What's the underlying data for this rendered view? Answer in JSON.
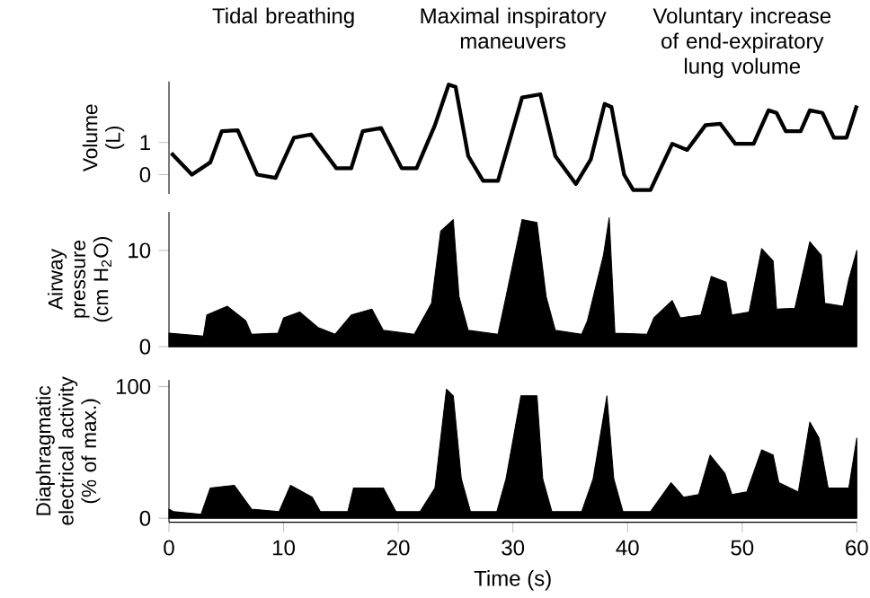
{
  "chart_data": [
    {
      "type": "line",
      "ylabel": "Volume (L)",
      "color": "#000000",
      "xlim": [
        0,
        60
      ],
      "ylim": [
        -0.6,
        2.9
      ],
      "yticks": [
        0,
        1
      ],
      "tick_labels": "y",
      "annotations": [
        "Tidal breathing",
        "Maximal inspiratory maneuvers",
        "Voluntary increase of end-expiratory lung volume"
      ],
      "x": [
        0.2,
        2.0,
        3.6,
        4.6,
        6.0,
        7.7,
        9.3,
        10.9,
        12.4,
        14.6,
        15.9,
        16.9,
        18.5,
        20.3,
        21.6,
        23.2,
        24.4,
        25.0,
        26.1,
        27.4,
        28.7,
        30.8,
        32.4,
        33.7,
        35.5,
        36.8,
        38.0,
        38.6,
        39.7,
        40.5,
        42.0,
        43.9,
        45.2,
        46.8,
        48.1,
        49.4,
        51.0,
        52.3,
        53.0,
        53.8,
        55.1,
        55.9,
        57.0,
        58.0,
        59.1,
        60
      ],
      "values": [
        0.67,
        0,
        0.38,
        1.35,
        1.38,
        0,
        -0.1,
        1.15,
        1.25,
        0.2,
        0.2,
        1.35,
        1.45,
        0.2,
        0.2,
        1.54,
        2.8,
        2.73,
        0.58,
        -0.19,
        -0.19,
        2.4,
        2.5,
        0.58,
        -0.29,
        0.48,
        2.2,
        2.1,
        0,
        -0.48,
        -0.48,
        0.96,
        0.77,
        1.54,
        1.58,
        0.96,
        0.96,
        2.0,
        1.92,
        1.35,
        1.35,
        2.0,
        1.92,
        1.15,
        1.15,
        2.15
      ]
    },
    {
      "type": "area",
      "ylabel": "Airway pressure (cm H$_{2}$O)",
      "color": "#000000",
      "xlim": [
        0,
        60
      ],
      "ylim": [
        0,
        14
      ],
      "yticks": [
        0,
        10
      ],
      "tick_labels": "y",
      "x": [
        0,
        3.0,
        3.3,
        5.1,
        6.7,
        7.2,
        9.5,
        10.0,
        11.4,
        13.0,
        14.5,
        15.9,
        17.7,
        18.7,
        21.4,
        22.9,
        23.7,
        24.8,
        25.3,
        26.1,
        28.7,
        29.4,
        30.8,
        32.1,
        32.9,
        33.7,
        36.0,
        36.5,
        37.9,
        38.4,
        38.9,
        41.7,
        42.3,
        43.9,
        44.6,
        46.4,
        47.3,
        48.6,
        49.1,
        50.6,
        51.7,
        52.7,
        53.0,
        54.6,
        55.9,
        56.9,
        57.2,
        58.8,
        59.3,
        60
      ],
      "values": [
        1.4,
        1.1,
        3.3,
        4.2,
        2.7,
        1.3,
        1.4,
        3.0,
        3.6,
        2.0,
        1.3,
        3.3,
        3.9,
        1.7,
        1.3,
        4.5,
        12,
        13.2,
        5.2,
        1.7,
        1.3,
        5.2,
        13.2,
        12.9,
        5.2,
        1.7,
        1.3,
        2.7,
        9.5,
        13.4,
        1.4,
        1.3,
        3.0,
        4.8,
        3.0,
        3.3,
        7.3,
        6.7,
        3.3,
        3.6,
        10.2,
        8.9,
        3.9,
        4.0,
        10.9,
        9.5,
        4.5,
        4.2,
        7.0,
        10
      ]
    },
    {
      "type": "area",
      "ylabel": "Diaphragmatic electrical activity (% of max.)",
      "xlabel": "Time (s)",
      "color": "#000000",
      "xlim": [
        0,
        60
      ],
      "xticks": [
        0,
        10,
        20,
        30,
        40,
        50,
        60
      ],
      "ylim": [
        -3,
        105
      ],
      "yticks": [
        0,
        100
      ],
      "x": [
        0,
        0.4,
        2.8,
        3.6,
        5.7,
        7.2,
        9.6,
        10.6,
        12.5,
        13.2,
        15.6,
        16.1,
        18.7,
        19.8,
        21.9,
        23.2,
        24.2,
        24.8,
        25.5,
        26.3,
        28.6,
        29.4,
        30.7,
        32.1,
        32.6,
        33.4,
        36.0,
        37.0,
        38.2,
        38.8,
        39.6,
        42.0,
        43.8,
        44.9,
        46.2,
        47.2,
        48.5,
        49.1,
        50.4,
        51.7,
        52.7,
        53.2,
        54.9,
        55.9,
        56.7,
        57.5,
        59.3,
        60
      ],
      "values": [
        7,
        5,
        3,
        23,
        25,
        7,
        5,
        25,
        16,
        5,
        5,
        23,
        23,
        5,
        5,
        23,
        98,
        93,
        30,
        5,
        5,
        30,
        93,
        93,
        30,
        5,
        5,
        30,
        93,
        30,
        5,
        5,
        27,
        16,
        18,
        48,
        34,
        18,
        20,
        52,
        48,
        27,
        20,
        73,
        61,
        23,
        23,
        61
      ]
    }
  ]
}
